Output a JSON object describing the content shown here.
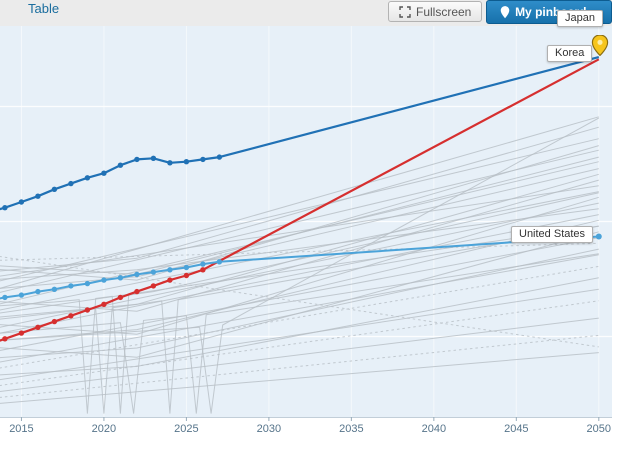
{
  "topbar": {
    "table_label": "Table",
    "fullscreen_label": "Fullscreen",
    "pinboard_label": "My pinboard",
    "pinboard_caret": "▾"
  },
  "series_labels": {
    "japan": "Japan",
    "korea": "Korea",
    "us": "United States"
  },
  "colors": {
    "chart_bg": "#e7f0f8",
    "grid": "#ffffff",
    "japan": "#2071b5",
    "korea": "#d62f2f",
    "us": "#4ba3d9",
    "neighbor": "#b7bec4",
    "axis_text": "#56748a",
    "axis_line": "#c2ced8",
    "tick": "#97abb9",
    "topbar_bg": "#ebebeb",
    "pin_fill": "#f6c51d",
    "pin_stroke": "#8a6d12",
    "button_blue": "#1d7bb4"
  },
  "chart_data": {
    "type": "line",
    "title": "",
    "xlabel": "",
    "ylabel": "",
    "x_ticks": [
      2015,
      2020,
      2025,
      2030,
      2035,
      2040,
      2045,
      2050
    ],
    "xlim": [
      2013.7,
      2050.8
    ],
    "ylim": [
      8,
      42
    ],
    "grid_values": [
      15,
      25,
      35
    ],
    "grid": "horizontal+vertical",
    "legend": "inline-labels",
    "series": [
      {
        "name": "Japan",
        "color": "#2071b5",
        "width": 2.2,
        "marker_last_year": 2027,
        "end_marker": false,
        "points": [
          [
            2013,
            25.8
          ],
          [
            2014,
            26.2
          ],
          [
            2015,
            26.7
          ],
          [
            2016,
            27.2
          ],
          [
            2017,
            27.8
          ],
          [
            2018,
            28.3
          ],
          [
            2019,
            28.8
          ],
          [
            2020,
            29.2
          ],
          [
            2021,
            29.9
          ],
          [
            2022,
            30.4
          ],
          [
            2023,
            30.5
          ],
          [
            2024,
            30.1
          ],
          [
            2025,
            30.2
          ],
          [
            2026,
            30.4
          ],
          [
            2027,
            30.6
          ],
          [
            2050,
            39.3
          ]
        ]
      },
      {
        "name": "Korea",
        "color": "#d62f2f",
        "width": 2.2,
        "marker_last_year": 2026,
        "end_marker": false,
        "points": [
          [
            2013,
            14.3
          ],
          [
            2014,
            14.8
          ],
          [
            2015,
            15.3
          ],
          [
            2016,
            15.8
          ],
          [
            2017,
            16.3
          ],
          [
            2018,
            16.8
          ],
          [
            2019,
            17.3
          ],
          [
            2020,
            17.8
          ],
          [
            2021,
            18.4
          ],
          [
            2022,
            18.9
          ],
          [
            2023,
            19.4
          ],
          [
            2024,
            19.9
          ],
          [
            2025,
            20.3
          ],
          [
            2026,
            20.8
          ],
          [
            2050,
            39.1
          ]
        ]
      },
      {
        "name": "United States",
        "color": "#4ba3d9",
        "width": 2,
        "marker_last_year": 2027,
        "end_marker": true,
        "points": [
          [
            2013,
            18.1
          ],
          [
            2014,
            18.4
          ],
          [
            2015,
            18.6
          ],
          [
            2016,
            18.9
          ],
          [
            2017,
            19.1
          ],
          [
            2018,
            19.4
          ],
          [
            2019,
            19.6
          ],
          [
            2020,
            19.9
          ],
          [
            2021,
            20.1
          ],
          [
            2022,
            20.4
          ],
          [
            2023,
            20.6
          ],
          [
            2024,
            20.8
          ],
          [
            2025,
            21.0
          ],
          [
            2026,
            21.3
          ],
          [
            2027,
            21.5
          ],
          [
            2050,
            23.7
          ]
        ]
      }
    ],
    "background_series": [
      {
        "start": 20.6,
        "end": 33.2,
        "mid": 21.8
      },
      {
        "start": 19.6,
        "end": 32.2
      },
      {
        "start": 21.2,
        "end": 30.6,
        "mid": 20.4
      },
      {
        "start": 18.6,
        "end": 31.2
      },
      {
        "start": 19.1,
        "end": 29.6,
        "mid": 20.2
      },
      {
        "start": 17.6,
        "end": 30.2
      },
      {
        "start": 18.1,
        "end": 28.6,
        "mid": 17.2
      },
      {
        "start": 20.1,
        "end": 28.1
      },
      {
        "start": 16.6,
        "end": 29.1,
        "mid": 17.8
      },
      {
        "start": 17.1,
        "end": 27.6
      },
      {
        "start": 16.1,
        "end": 27.1,
        "mid": 15.2
      },
      {
        "start": 15.6,
        "end": 26.6
      },
      {
        "start": 19.9,
        "end": 26.1,
        "mid": 20.8
      },
      {
        "start": 15.1,
        "end": 25.6
      },
      {
        "start": 14.6,
        "end": 25.1,
        "mid": 15.6
      },
      {
        "start": 16.9,
        "end": 24.6
      },
      {
        "start": 14.1,
        "end": 24.1,
        "mid": 13.2
      },
      {
        "start": 13.6,
        "end": 23.6
      },
      {
        "start": 21.6,
        "end": 23.1,
        "dotted": true
      },
      {
        "start": 13.1,
        "end": 22.6,
        "mid": 14.0
      },
      {
        "start": 12.6,
        "end": 22.1
      },
      {
        "start": 12.1,
        "end": 21.1,
        "dotted": true
      },
      {
        "start": 11.6,
        "end": 20.1,
        "mid": 12.4
      },
      {
        "start": 11.1,
        "end": 19.1
      },
      {
        "start": 10.6,
        "end": 18.1,
        "dotted": true
      },
      {
        "start": 10.1,
        "end": 16.6
      },
      {
        "start": 9.6,
        "end": 15.1,
        "dotted": true
      },
      {
        "start": 18.9,
        "end": 34.1
      },
      {
        "start": 20.9,
        "end": 31.6,
        "mid": 19.9
      },
      {
        "start": 9.1,
        "end": 13.6
      },
      {
        "start": 22.1,
        "end": 14.1,
        "dotted": true
      },
      {
        "points": [
          [
            2013,
            17.6
          ],
          [
            2017,
            18.0
          ],
          [
            2018.5,
            18.2
          ],
          [
            2019,
            8.3
          ],
          [
            2019.5,
            18.3
          ],
          [
            2020.5,
            18.5
          ],
          [
            2021,
            8.3
          ],
          [
            2021.5,
            18.6
          ],
          [
            2023,
            18.9
          ],
          [
            2050,
            27.5
          ]
        ]
      },
      {
        "points": [
          [
            2013,
            16.4
          ],
          [
            2018,
            17.2
          ],
          [
            2019.5,
            17.4
          ],
          [
            2020,
            8.3
          ],
          [
            2020.5,
            17.5
          ],
          [
            2023.5,
            18.1
          ],
          [
            2024,
            8.3
          ],
          [
            2024.5,
            18.2
          ],
          [
            2050,
            24.6
          ]
        ]
      },
      {
        "points": [
          [
            2013,
            15.2
          ],
          [
            2021,
            16.2
          ],
          [
            2021.8,
            8.3
          ],
          [
            2022.4,
            16.4
          ],
          [
            2025,
            16.8
          ],
          [
            2025.6,
            8.3
          ],
          [
            2026.2,
            16.9
          ],
          [
            2050,
            22.2
          ]
        ]
      },
      {
        "points": [
          [
            2013,
            14.6
          ],
          [
            2025.8,
            15.8
          ],
          [
            2026.5,
            8.3
          ],
          [
            2027.2,
            16.0
          ],
          [
            2050,
            34.0
          ]
        ]
      }
    ]
  }
}
